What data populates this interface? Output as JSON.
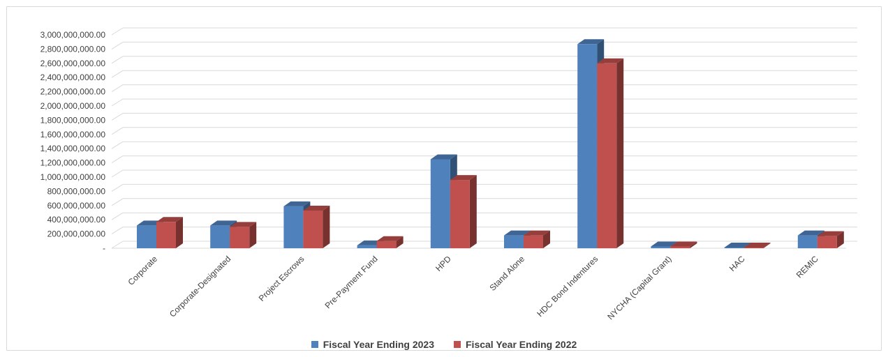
{
  "chart_data": {
    "type": "bar",
    "style": "3d-clustered-column",
    "title": "",
    "xlabel": "",
    "ylabel": "",
    "ylim": [
      0,
      3000000000
    ],
    "y_step": 200000000,
    "y_tick_labels": [
      "-",
      "200,000,000.00",
      "400,000,000.00",
      "600,000,000.00",
      "800,000,000.00",
      "1,000,000,000.00",
      "1,200,000,000.00",
      "1,400,000,000.00",
      "1,600,000,000.00",
      "1,800,000,000.00",
      "2,000,000,000.00",
      "2,200,000,000.00",
      "2,400,000,000.00",
      "2,600,000,000.00",
      "2,800,000,000.00",
      "3,000,000,000.00"
    ],
    "grid": true,
    "legend_position": "bottom",
    "categories": [
      "Corporate",
      "Corporate-Designated",
      "Project Escrows",
      "Pre-Payment Fund",
      "HPD",
      "Stand Alone",
      "HDC Bond Indentures",
      "NYCHA (Capital Grant)",
      "HAC",
      "REMIC"
    ],
    "series": [
      {
        "name": "Fiscal Year Ending 2023",
        "color": "#4f81bd",
        "values": [
          320000000,
          320000000,
          590000000,
          40000000,
          1250000000,
          180000000,
          2870000000,
          25000000,
          10000000,
          180000000
        ]
      },
      {
        "name": "Fiscal Year Ending 2022",
        "color": "#c0504d",
        "values": [
          370000000,
          300000000,
          530000000,
          100000000,
          960000000,
          180000000,
          2600000000,
          25000000,
          10000000,
          170000000
        ]
      }
    ]
  }
}
